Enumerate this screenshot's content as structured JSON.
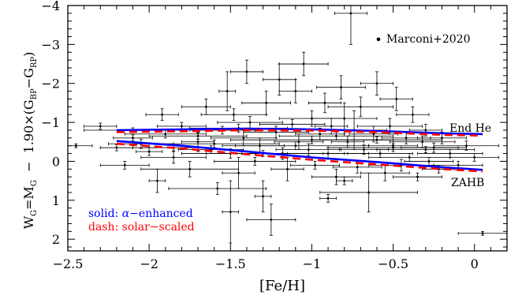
{
  "chart_data": {
    "type": "scatter",
    "title": "",
    "xlim": [
      -2.5,
      0.2
    ],
    "ylim": [
      2.3,
      -4.0
    ],
    "y_inverted": true,
    "x_ticks": [
      -2.5,
      -2,
      -1.5,
      -1,
      -0.5,
      0
    ],
    "y_ticks": [
      -4,
      -3,
      -2,
      -1,
      0,
      1,
      2
    ],
    "x_tick_labels": [
      "−2.5",
      "−2",
      "−1.5",
      "−1",
      "−0.5",
      "0"
    ],
    "y_tick_labels": [
      "−4",
      "−3",
      "−2",
      "−1",
      "0",
      "1",
      "2"
    ],
    "xlabel": "[Fe/H]",
    "ylabel": {
      "w": "W",
      "w_sub": "G",
      "eq": "=M",
      "m_sub": "G",
      "mid": "  −  1.90×(G",
      "bp_sub": "BP",
      "minus": "−G",
      "rp_sub": "RP",
      "close": ")"
    },
    "colors": {
      "solid": "#0000ff",
      "dash": "#ff0000",
      "data": "#000000"
    },
    "legend_position": "top-right",
    "legend": {
      "marker": "•",
      "label": "Marconi+2020"
    },
    "curve_labels": {
      "top": "End He",
      "bottom": "ZAHB"
    },
    "key": {
      "solid_prefix": "solid: ",
      "solid_greek": "α",
      "solid_suffix": "−enhanced",
      "dash_text": "dash: solar−scaled"
    },
    "series": [
      {
        "name": "Marconi+2020",
        "kind": "errorbar",
        "points": [
          [
            -2.45,
            -0.4,
            0.1,
            0.05
          ],
          [
            -2.3,
            -0.9,
            0.1,
            0.08
          ],
          [
            -2.2,
            -0.35,
            0.1,
            0.08
          ],
          [
            -2.15,
            0.1,
            0.15,
            0.1
          ],
          [
            -2.1,
            -0.6,
            0.12,
            0.08
          ],
          [
            -2.05,
            -0.45,
            0.2,
            0.12
          ],
          [
            -2.0,
            -0.25,
            0.08,
            0.1
          ],
          [
            -1.95,
            0.5,
            0.05,
            0.3
          ],
          [
            -1.92,
            -1.2,
            0.1,
            0.15
          ],
          [
            -1.9,
            -0.7,
            0.25,
            0.1
          ],
          [
            -1.85,
            -0.1,
            0.2,
            0.15
          ],
          [
            -1.8,
            -0.9,
            0.15,
            0.1
          ],
          [
            -1.75,
            0.2,
            0.3,
            0.2
          ],
          [
            -1.7,
            -0.5,
            0.1,
            0.25
          ],
          [
            -1.65,
            -1.4,
            0.15,
            0.2
          ],
          [
            -1.62,
            -0.3,
            0.2,
            0.1
          ],
          [
            -1.58,
            0.7,
            0.3,
            0.15
          ],
          [
            -1.55,
            -0.8,
            0.2,
            0.1
          ],
          [
            -1.52,
            -1.8,
            0.05,
            0.5
          ],
          [
            -1.5,
            1.3,
            0.05,
            0.8
          ],
          [
            -1.5,
            -0.2,
            0.15,
            0.12
          ],
          [
            -1.48,
            -1.2,
            0.2,
            0.15
          ],
          [
            -1.45,
            0.3,
            0.1,
            0.4
          ],
          [
            -1.42,
            -0.6,
            0.2,
            0.2
          ],
          [
            -1.4,
            -2.3,
            0.1,
            0.3
          ],
          [
            -1.38,
            -1.0,
            0.2,
            0.15
          ],
          [
            -1.35,
            0.0,
            0.25,
            0.1
          ],
          [
            -1.32,
            -0.4,
            0.15,
            0.2
          ],
          [
            -1.3,
            0.9,
            0.05,
            0.4
          ],
          [
            -1.28,
            -1.5,
            0.15,
            0.3
          ],
          [
            -1.25,
            1.5,
            0.15,
            0.4
          ],
          [
            -1.22,
            -0.75,
            0.2,
            0.15
          ],
          [
            -1.2,
            -2.1,
            0.1,
            0.4
          ],
          [
            -1.18,
            -0.2,
            0.25,
            0.15
          ],
          [
            -1.15,
            0.2,
            0.1,
            0.3
          ],
          [
            -1.12,
            -0.95,
            0.2,
            0.12
          ],
          [
            -1.1,
            -1.8,
            0.1,
            0.3
          ],
          [
            -1.08,
            -0.5,
            0.15,
            0.2
          ],
          [
            -1.05,
            -2.5,
            0.15,
            0.3
          ],
          [
            -1.02,
            -0.3,
            0.2,
            0.15
          ],
          [
            -1.0,
            -1.1,
            0.2,
            0.2
          ],
          [
            -0.98,
            0.1,
            0.15,
            0.1
          ],
          [
            -0.95,
            -0.7,
            0.15,
            0.15
          ],
          [
            -0.92,
            -1.5,
            0.1,
            0.25
          ],
          [
            -0.9,
            -0.2,
            0.25,
            0.15
          ],
          [
            -0.88,
            -0.9,
            0.1,
            0.2
          ],
          [
            -0.85,
            0.4,
            0.15,
            0.2
          ],
          [
            -0.82,
            -1.9,
            0.15,
            0.3
          ],
          [
            -0.8,
            -1.1,
            0.2,
            0.4
          ],
          [
            -0.78,
            -0.5,
            0.1,
            0.15
          ],
          [
            -0.76,
            -3.8,
            0.1,
            0.8
          ],
          [
            -0.74,
            -0.8,
            0.2,
            0.5
          ],
          [
            -0.72,
            0.15,
            0.15,
            0.15
          ],
          [
            -0.7,
            -1.4,
            0.2,
            0.25
          ],
          [
            -0.68,
            -0.3,
            0.15,
            0.12
          ],
          [
            -0.65,
            0.8,
            0.3,
            0.5
          ],
          [
            -0.62,
            -0.7,
            0.15,
            0.2
          ],
          [
            -0.6,
            -2.0,
            0.1,
            0.3
          ],
          [
            -0.58,
            -0.2,
            0.2,
            0.1
          ],
          [
            -0.55,
            0.3,
            0.15,
            0.2
          ],
          [
            -0.52,
            -0.9,
            0.2,
            0.2
          ],
          [
            -0.5,
            -0.4,
            0.15,
            0.1
          ],
          [
            -0.48,
            -1.6,
            0.1,
            0.3
          ],
          [
            -0.45,
            0.1,
            0.2,
            0.15
          ],
          [
            -0.42,
            -0.6,
            0.15,
            0.15
          ],
          [
            -0.4,
            -0.1,
            0.25,
            0.1
          ],
          [
            -0.38,
            -1.2,
            0.1,
            0.2
          ],
          [
            -0.35,
            0.4,
            0.15,
            0.1
          ],
          [
            -0.32,
            -0.5,
            0.2,
            0.15
          ],
          [
            -0.3,
            -0.8,
            0.1,
            0.15
          ],
          [
            -0.28,
            0.0,
            0.15,
            0.1
          ],
          [
            -0.25,
            -0.35,
            0.2,
            0.12
          ],
          [
            -0.22,
            0.2,
            0.1,
            0.1
          ],
          [
            -0.2,
            -0.6,
            0.15,
            0.15
          ],
          [
            -0.15,
            -0.2,
            0.2,
            0.1
          ],
          [
            -0.1,
            0.1,
            0.15,
            0.1
          ],
          [
            -0.05,
            -0.4,
            0.2,
            0.12
          ],
          [
            0.0,
            -0.1,
            0.15,
            0.1
          ],
          [
            0.05,
            1.85,
            0.15,
            0.05
          ],
          [
            -0.9,
            0.95,
            0.05,
            0.1
          ],
          [
            -0.8,
            0.5,
            0.05,
            0.1
          ],
          [
            -1.6,
            -0.45,
            0.4,
            0.1
          ],
          [
            -1.0,
            -0.55,
            0.5,
            0.1
          ],
          [
            -0.5,
            -0.35,
            0.4,
            0.1
          ],
          [
            -1.3,
            -0.2,
            0.5,
            0.08
          ],
          [
            -1.7,
            -0.65,
            0.3,
            0.08
          ],
          [
            -2.1,
            -0.8,
            0.3,
            0.06
          ],
          [
            -0.6,
            -0.55,
            0.4,
            0.08
          ],
          [
            -1.1,
            -0.4,
            0.45,
            0.1
          ],
          [
            -0.3,
            -0.3,
            0.3,
            0.08
          ],
          [
            -1.45,
            -0.85,
            0.3,
            0.1
          ],
          [
            -0.85,
            -0.65,
            0.35,
            0.1
          ],
          [
            -1.85,
            -0.35,
            0.25,
            0.08
          ]
        ]
      },
      {
        "name": "End He",
        "style": "solid",
        "color": "#0000ff",
        "x": [
          -2.2,
          -1.8,
          -1.4,
          -1.0,
          -0.6,
          -0.2,
          0.05
        ],
        "y": [
          -0.8,
          -0.82,
          -0.84,
          -0.82,
          -0.78,
          -0.72,
          -0.7
        ]
      },
      {
        "name": "End He",
        "style": "dash",
        "color": "#ff0000",
        "x": [
          -2.2,
          -1.8,
          -1.4,
          -1.0,
          -0.6,
          -0.2,
          0.05
        ],
        "y": [
          -0.75,
          -0.77,
          -0.8,
          -0.79,
          -0.75,
          -0.68,
          -0.66
        ]
      },
      {
        "name": "ZAHB",
        "style": "solid",
        "color": "#0000ff",
        "x": [
          -2.2,
          -1.8,
          -1.4,
          -1.0,
          -0.6,
          -0.2,
          0.05
        ],
        "y": [
          -0.52,
          -0.4,
          -0.25,
          -0.1,
          0.02,
          0.15,
          0.22
        ]
      },
      {
        "name": "ZAHB",
        "style": "dash",
        "color": "#ff0000",
        "x": [
          -2.2,
          -1.8,
          -1.4,
          -1.0,
          -0.6,
          -0.2,
          0.05
        ],
        "y": [
          -0.45,
          -0.33,
          -0.18,
          -0.04,
          0.08,
          0.2,
          0.26
        ]
      }
    ]
  }
}
